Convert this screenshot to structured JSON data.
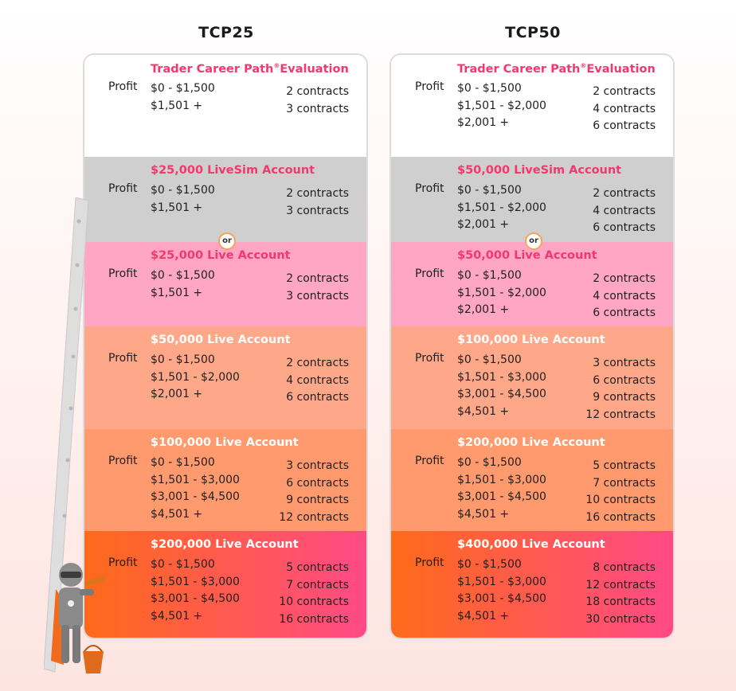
{
  "columns": [
    {
      "title": "TCP25",
      "sections": [
        {
          "title": "Trader Career Path",
          "reg": "®",
          "title_suffix": "Evaluation",
          "profit_label": "Profit",
          "ranges": [
            "$0 - $1,500",
            "$1,501 +"
          ],
          "contracts": [
            "2 contracts",
            "3 contracts"
          ],
          "bg": "#ffffff",
          "title_color": "#f2386e"
        },
        {
          "title": "$25,000 LiveSim Account",
          "profit_label": "Profit",
          "ranges": [
            "$0 - $1,500",
            "$1,501 +"
          ],
          "contracts": [
            "2 contracts",
            "3 contracts"
          ],
          "bg": "#cfcfcf",
          "title_color": "#f2386e"
        },
        {
          "or": "or",
          "title": "$25,000 Live Account",
          "profit_label": "Profit",
          "ranges": [
            "$0 - $1,500",
            "$1,501 +"
          ],
          "contracts": [
            "2 contracts",
            "3 contracts"
          ],
          "bg": "#ffa6c4",
          "title_color": "#f2386e"
        },
        {
          "title": "$50,000 Live Account",
          "profit_label": "Profit",
          "ranges": [
            "$0 - $1,500",
            "$1,501 - $2,000",
            "$2,001 +"
          ],
          "contracts": [
            "2 contracts",
            "4 contracts",
            "6 contracts"
          ],
          "bg": "#ffa789",
          "title_color": "#ffffff"
        },
        {
          "title": "$100,000 Live Account",
          "profit_label": "Profit",
          "ranges": [
            "$0 - $1,500",
            "$1,501 - $3,000",
            "$3,001 - $4,500",
            "$4,501 +"
          ],
          "contracts": [
            "3 contracts",
            "6 contracts",
            "9 contracts",
            "12 contracts"
          ],
          "bg": "#ff9a6e",
          "title_color": "#ffffff"
        },
        {
          "title": "$200,000 Live Account",
          "profit_label": "Profit",
          "ranges": [
            "$0 - $1,500",
            "$1,501 - $3,000",
            "$3,001 - $4,500",
            "$4,501 +"
          ],
          "contracts": [
            "5 contracts",
            "7 contracts",
            "10 contracts",
            "16 contracts"
          ],
          "bg": "linear-gradient(90deg, #ff6a1a 0%, #ff4a86 100%)",
          "title_color": "#ffffff"
        }
      ]
    },
    {
      "title": "TCP50",
      "sections": [
        {
          "title": "Trader Career Path",
          "reg": "®",
          "title_suffix": "Evaluation",
          "profit_label": "Profit",
          "ranges": [
            "$0 - $1,500",
            "$1,501 - $2,000",
            "$2,001 +"
          ],
          "contracts": [
            "2 contracts",
            "4 contracts",
            "6 contracts"
          ],
          "bg": "#ffffff",
          "title_color": "#f2386e"
        },
        {
          "title": "$50,000 LiveSim Account",
          "profit_label": "Profit",
          "ranges": [
            "$0 - $1,500",
            "$1,501 - $2,000",
            "$2,001 +"
          ],
          "contracts": [
            "2 contracts",
            "4 contracts",
            "6 contracts"
          ],
          "bg": "#cfcfcf",
          "title_color": "#f2386e"
        },
        {
          "or": "or",
          "title": "$50,000 Live Account",
          "profit_label": "Profit",
          "ranges": [
            "$0 - $1,500",
            "$1,501 - $2,000",
            "$2,001 +"
          ],
          "contracts": [
            "2 contracts",
            "4 contracts",
            "6 contracts"
          ],
          "bg": "#ffa6c4",
          "title_color": "#f2386e"
        },
        {
          "title": "$100,000 Live Account",
          "profit_label": "Profit",
          "ranges": [
            "$0 - $1,500",
            "$1,501 - $3,000",
            "$3,001 - $4,500",
            "$4,501 +"
          ],
          "contracts": [
            "3 contracts",
            "6 contracts",
            "9 contracts",
            "12 contracts"
          ],
          "bg": "#ffa789",
          "title_color": "#ffffff"
        },
        {
          "title": "$200,000 Live Account",
          "profit_label": "Profit",
          "ranges": [
            "$0 - $1,500",
            "$1,501 - $3,000",
            "$3,001 - $4,500",
            "$4,501 +"
          ],
          "contracts": [
            "5 contracts",
            "7 contracts",
            "10 contracts",
            "16 contracts"
          ],
          "bg": "#ff9a6e",
          "title_color": "#ffffff"
        },
        {
          "title": "$400,000 Live Account",
          "profit_label": "Profit",
          "ranges": [
            "$0 - $1,500",
            "$1,501 - $3,000",
            "$3,001 - $4,500",
            "$4,501 +"
          ],
          "contracts": [
            "8 contracts",
            "12 contracts",
            "18 contracts",
            "30 contracts"
          ],
          "bg": "linear-gradient(90deg, #ff6a1a 0%, #ff4a86 100%)",
          "title_color": "#ffffff"
        }
      ]
    }
  ],
  "decor": {
    "ladder": "ladder-illustration",
    "mascot": "ninja-mascot-illustration"
  }
}
